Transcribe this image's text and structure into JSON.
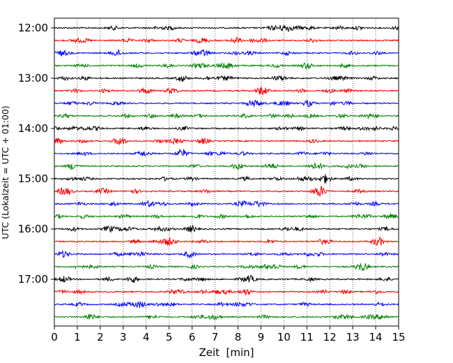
{
  "chart_data": {
    "type": "line",
    "title": "",
    "xlabel": "Zeit  [min]",
    "ylabel": "UTC (Lokalzeit = UTC + 01:00)",
    "xlim": [
      0,
      15
    ],
    "x_ticks": [
      "0",
      "1",
      "2",
      "3",
      "4",
      "5",
      "6",
      "7",
      "8",
      "9",
      "10",
      "11",
      "12",
      "13",
      "14",
      "15"
    ],
    "y_ticks": [
      "12:00",
      "13:00",
      "14:00",
      "15:00",
      "16:00",
      "17:00"
    ],
    "grid": "vertical dotted",
    "legend": "none",
    "trace_interval_minutes": 15,
    "color_cycle": [
      "#000000",
      "#ff0000",
      "#0000ff",
      "#008000"
    ],
    "traces": [
      "12:00",
      "12:15",
      "12:30",
      "12:45",
      "13:00",
      "13:15",
      "13:30",
      "13:45",
      "14:00",
      "14:15",
      "14:30",
      "14:45",
      "15:00",
      "15:15",
      "15:30",
      "15:45",
      "16:00",
      "16:15",
      "16:30",
      "16:45",
      "17:00",
      "17:15",
      "17:30",
      "17:45"
    ]
  }
}
